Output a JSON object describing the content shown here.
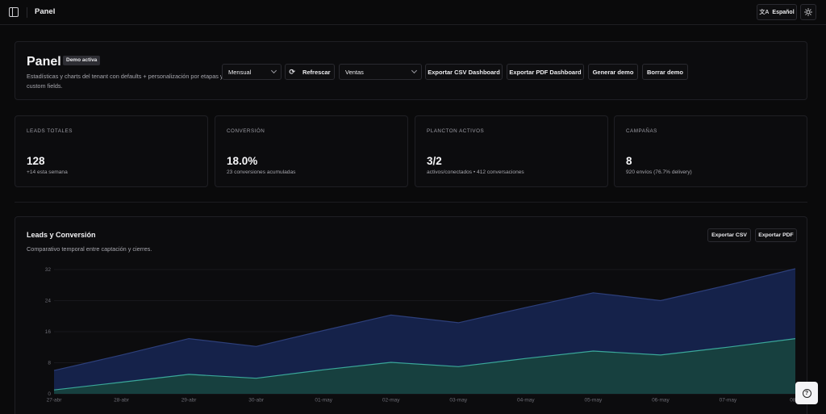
{
  "topbar": {
    "title": "Panel",
    "language_label": "Español",
    "sidebar_toggle_icon": "sidebar-toggle-icon",
    "language_icon": "translate-icon",
    "theme_icon": "sun-icon"
  },
  "header": {
    "title": "Panel",
    "badge": "Demo activa",
    "description": "Estadísticas y charts del tenant con defaults + personalización por etapas y custom fields.",
    "period_select": "Mensual",
    "refresh_label": "Refrescar",
    "pipeline_select": "Ventas",
    "export_csv_label": "Exportar CSV Dashboard",
    "export_pdf_label": "Exportar PDF Dashboard",
    "generate_demo_label": "Generar demo",
    "delete_demo_label": "Borrar demo"
  },
  "stats": [
    {
      "label": "LEADS TOTALES",
      "value": "128",
      "sub": "+14 esta semana"
    },
    {
      "label": "CONVERSIÓN",
      "value": "18.0%",
      "sub": "23 conversiones acumuladas"
    },
    {
      "label": "PLANCTON ACTIVOS",
      "value": "3/2",
      "sub": "activos/conectados • 412 conversaciones"
    },
    {
      "label": "CAMPAÑAS",
      "value": "8",
      "sub": "920 envíos (76.7% delivery)"
    }
  ],
  "chart_section": {
    "title": "Leads y Conversión",
    "subtitle": "Comparativo temporal entre captación y cierres.",
    "export_csv_label": "Exportar CSV",
    "export_pdf_label": "Exportar PDF"
  },
  "chart_data": {
    "type": "area",
    "categories": [
      "27-abr",
      "28-abr",
      "29-abr",
      "30-abr",
      "01-may",
      "02-may",
      "03-may",
      "04-may",
      "05-may",
      "06-may",
      "07-may",
      "08-m"
    ],
    "series": [
      {
        "values": [
          6,
          10,
          14.2,
          12.2,
          16.3,
          20.3,
          18.3,
          22.2,
          26,
          24,
          28,
          32.2
        ],
        "color": "#2d3f7a",
        "fill": "#15224a"
      },
      {
        "values": [
          1,
          3,
          5,
          4,
          6.2,
          8.1,
          7,
          9.1,
          11,
          10,
          12,
          14.2
        ],
        "color": "#3aa79a",
        "fill": "#17403f"
      }
    ],
    "yticks": [
      0,
      8,
      16,
      24,
      32
    ],
    "ylim": [
      0,
      32.2
    ],
    "grid": true
  },
  "help": {
    "icon": "help-icon",
    "glyph": "?"
  }
}
